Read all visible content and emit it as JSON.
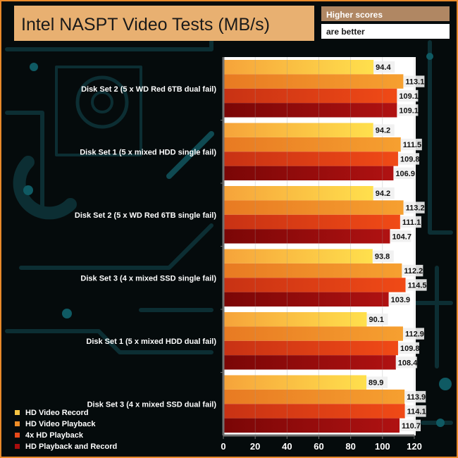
{
  "chart_data": {
    "type": "bar",
    "orientation": "horizontal",
    "title": "Intel NASPT Video Tests (MB/s)",
    "note_line1": "Higher scores",
    "note_line2": "are better",
    "categories": [
      "Disk Set 2 (5 x WD Red 6TB dual fail)",
      "Disk Set 1 (5 x mixed HDD single fail)",
      "Disk Set 2 (5 x WD Red 6TB single fail)",
      "Disk Set 3 (4 x mixed SSD single fail)",
      "Disk Set 1 (5 x mixed HDD dual fail)",
      "Disk Set 3 (4 x mixed SSD dual fail)"
    ],
    "series": [
      {
        "name": "HD Video Record",
        "values": [
          94.4,
          94.2,
          94.2,
          93.8,
          90.1,
          89.9
        ]
      },
      {
        "name": "HD Video Playback",
        "values": [
          113.1,
          111.5,
          113.2,
          112.2,
          112.9,
          113.9
        ]
      },
      {
        "name": "4x HD Playback",
        "values": [
          109.1,
          109.8,
          111.1,
          114.5,
          109.8,
          114.1
        ]
      },
      {
        "name": "HD Playback and Record",
        "values": [
          109.1,
          106.9,
          104.7,
          103.9,
          108.4,
          110.7
        ]
      }
    ],
    "xlim": [
      0,
      120
    ],
    "xticks": [
      "0",
      "20",
      "40",
      "60",
      "80",
      "100",
      "120"
    ],
    "legend_position": "bottom-left",
    "colors": {
      "background": "#050b0c",
      "circuit": "#0c2e33",
      "circuit_dot": "#0f5a63",
      "border": "#e8892a",
      "title_box": "#e8b071",
      "note_box": "#b08763",
      "plot_bg": "#ffffff",
      "axis": "#707070",
      "series": [
        "#f6c443",
        "#f08d27",
        "#e84a1a",
        "#a80d0d"
      ],
      "legend_swatch": [
        "#f6c443",
        "#f08d27",
        "#e84a1a",
        "#a80d0d"
      ]
    }
  }
}
